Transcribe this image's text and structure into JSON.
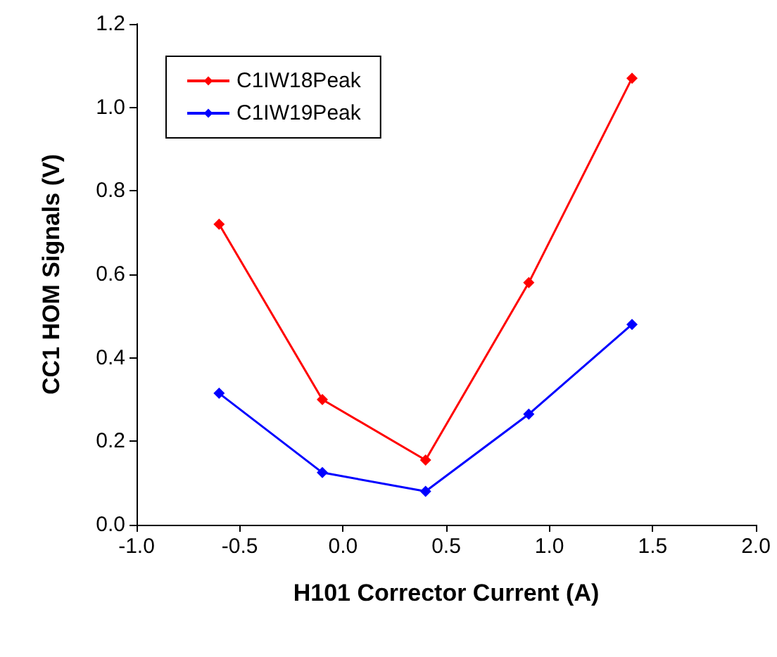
{
  "chart_data": {
    "type": "line",
    "xlabel": "H101 Corrector Current (A)",
    "ylabel": "CC1 HOM Signals (V)",
    "x": [
      -0.6,
      -0.1,
      0.4,
      0.9,
      1.4
    ],
    "series": [
      {
        "name": "C1IW18Peak",
        "color": "#ff0000",
        "values": [
          0.72,
          0.3,
          0.155,
          0.58,
          1.07
        ]
      },
      {
        "name": "C1IW19Peak",
        "color": "#0000ff",
        "values": [
          0.315,
          0.125,
          0.08,
          0.265,
          0.48
        ]
      }
    ],
    "xlim": [
      -1.0,
      2.0
    ],
    "xticks": [
      {
        "value": -1.0,
        "label": "-1.0"
      },
      {
        "value": -0.5,
        "label": "-0.5"
      },
      {
        "value": 0,
        "label": "0.0"
      },
      {
        "value": 0.5,
        "label": "0.5"
      },
      {
        "value": 1.0,
        "label": "1.0"
      },
      {
        "value": 1.5,
        "label": "1.5"
      },
      {
        "value": 2.0,
        "label": "2.0"
      }
    ],
    "ylim": [
      0,
      1.2
    ],
    "yticks": [
      {
        "value": 0,
        "label": "0.0"
      },
      {
        "value": 0.2,
        "label": "0.2"
      },
      {
        "value": 0.4,
        "label": "0.4"
      },
      {
        "value": 0.6,
        "label": "0.6"
      },
      {
        "value": 0.8,
        "label": "0.8"
      },
      {
        "value": 1.0,
        "label": "1.0"
      },
      {
        "value": 1.2,
        "label": "1.2"
      }
    ],
    "legend": "top left",
    "marker": "diamond",
    "line_style": "solid",
    "grid": false
  }
}
